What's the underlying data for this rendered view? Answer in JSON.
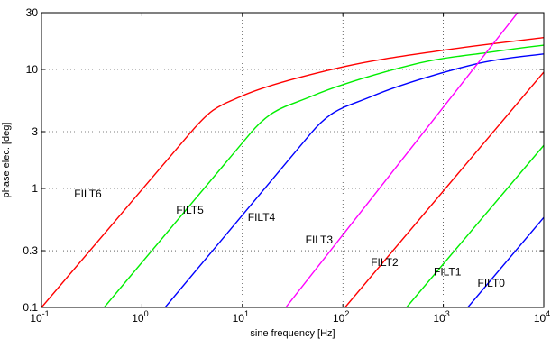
{
  "chart_data": {
    "type": "line",
    "title": "",
    "xlabel": "sine frequency [Hz]",
    "ylabel": "phase elec. [deg]",
    "xscale": "log",
    "yscale": "log",
    "xlim": [
      0.1,
      10000
    ],
    "ylim": [
      0.1,
      30
    ],
    "grid": true,
    "legend": "none",
    "x_ticks": [
      {
        "value": 0.1,
        "base": "10",
        "exp": "-1"
      },
      {
        "value": 1,
        "base": "10",
        "exp": "0"
      },
      {
        "value": 10,
        "base": "10",
        "exp": "1"
      },
      {
        "value": 100,
        "base": "10",
        "exp": "2"
      },
      {
        "value": 1000,
        "base": "10",
        "exp": "3"
      },
      {
        "value": 10000,
        "base": "10",
        "exp": "4"
      }
    ],
    "y_ticks": [
      {
        "value": 0.1,
        "label": "0.1"
      },
      {
        "value": 0.3,
        "label": "0.3"
      },
      {
        "value": 1,
        "label": "1"
      },
      {
        "value": 3,
        "label": "3"
      },
      {
        "value": 10,
        "label": "10"
      },
      {
        "value": 30,
        "label": "30"
      }
    ],
    "series": [
      {
        "name": "FILT6",
        "color": "#ff0000",
        "label_at": {
          "x": 0.29,
          "y": 0.9
        },
        "points": [
          [
            0.1,
            0.1
          ],
          [
            3,
            2.9
          ],
          [
            10,
            6.0
          ],
          [
            100,
            10.5
          ],
          [
            1000,
            14.5
          ],
          [
            10000,
            18.5
          ]
        ]
      },
      {
        "name": "FILT5",
        "color": "#00ee00",
        "label_at": {
          "x": 3.0,
          "y": 0.66
        },
        "points": [
          [
            0.42,
            0.1
          ],
          [
            12,
            2.9
          ],
          [
            50,
            6.0
          ],
          [
            500,
            11.0
          ],
          [
            3000,
            14.0
          ],
          [
            10000,
            16.0
          ]
        ]
      },
      {
        "name": "FILT4",
        "color": "#0000ff",
        "label_at": {
          "x": 15.5,
          "y": 0.57
        },
        "points": [
          [
            1.7,
            0.1
          ],
          [
            48,
            2.9
          ],
          [
            200,
            6.0
          ],
          [
            2000,
            11.0
          ],
          [
            10000,
            13.5
          ]
        ]
      },
      {
        "name": "FILT3",
        "color": "#ff00ff",
        "label_at": {
          "x": 58,
          "y": 0.37
        },
        "points": [
          [
            27,
            0.1
          ],
          [
            5500,
            30
          ]
        ]
      },
      {
        "name": "FILT2",
        "color": "#ff0000",
        "label_at": {
          "x": 260,
          "y": 0.24
        },
        "points": [
          [
            105,
            0.1
          ],
          [
            10000,
            9.5
          ]
        ]
      },
      {
        "name": "FILT1",
        "color": "#00ee00",
        "label_at": {
          "x": 1100,
          "y": 0.2
        },
        "points": [
          [
            430,
            0.1
          ],
          [
            10000,
            2.3
          ]
        ]
      },
      {
        "name": "FILT0",
        "color": "#0000ff",
        "label_at": {
          "x": 3000,
          "y": 0.16
        },
        "points": [
          [
            1750,
            0.1
          ],
          [
            10000,
            0.57
          ]
        ]
      }
    ]
  }
}
